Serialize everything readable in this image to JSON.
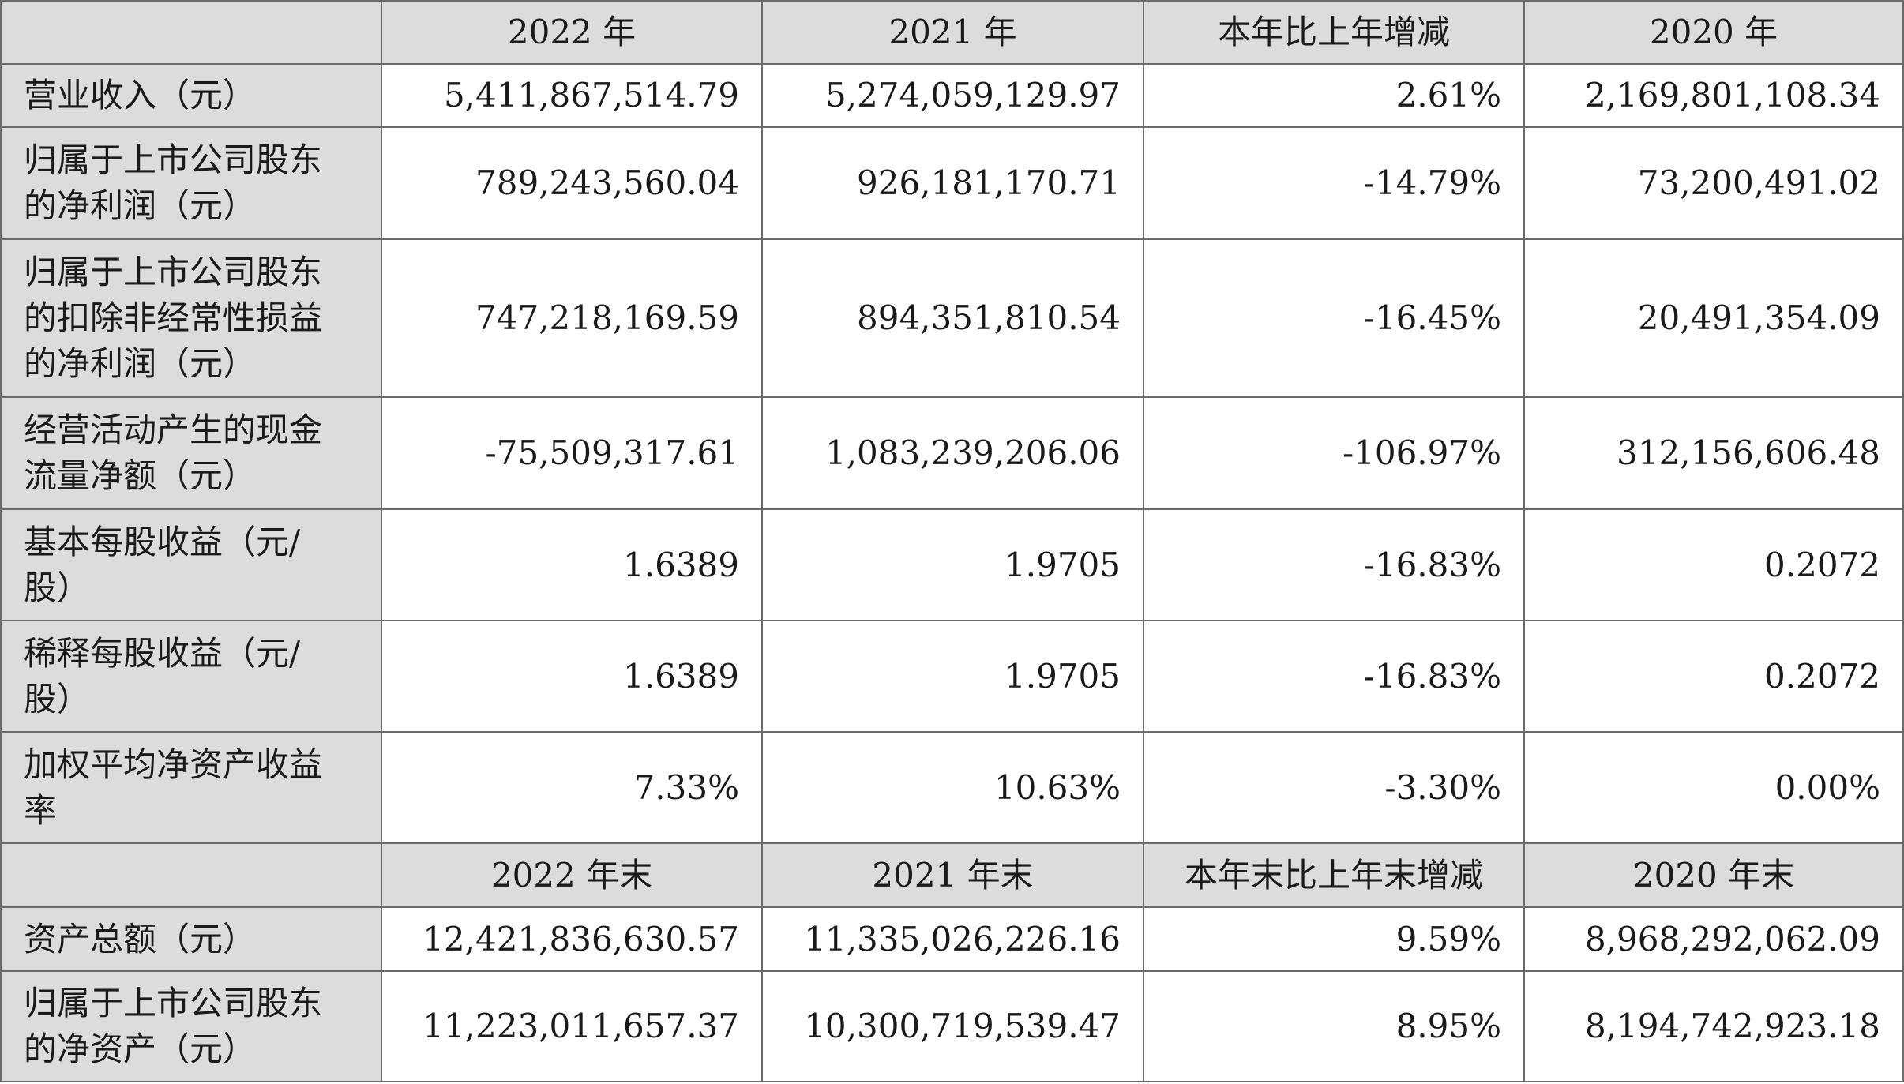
{
  "header1": {
    "c0": "",
    "c1": "2022 年",
    "c2": "2021 年",
    "c3": "本年比上年增减",
    "c4": "2020 年"
  },
  "rows1": [
    {
      "label_lines": [
        "营业收入（元）"
      ],
      "v2022": "5,411,867,514.79",
      "v2021": "5,274,059,129.97",
      "change": "2.61%",
      "v2020": "2,169,801,108.34"
    },
    {
      "label_lines": [
        "归属于上市公司股东",
        "的净利润（元）"
      ],
      "v2022": "789,243,560.04",
      "v2021": "926,181,170.71",
      "change": "-14.79%",
      "v2020": "73,200,491.02"
    },
    {
      "label_lines": [
        "归属于上市公司股东",
        "的扣除非经常性损益",
        "的净利润（元）"
      ],
      "v2022": "747,218,169.59",
      "v2021": "894,351,810.54",
      "change": "-16.45%",
      "v2020": "20,491,354.09"
    },
    {
      "label_lines": [
        "经营活动产生的现金",
        "流量净额（元）"
      ],
      "v2022": "-75,509,317.61",
      "v2021": "1,083,239,206.06",
      "change": "-106.97%",
      "v2020": "312,156,606.48"
    },
    {
      "label_lines": [
        "基本每股收益（元/",
        "股）"
      ],
      "v2022": "1.6389",
      "v2021": "1.9705",
      "change": "-16.83%",
      "v2020": "0.2072"
    },
    {
      "label_lines": [
        "稀释每股收益（元/",
        "股）"
      ],
      "v2022": "1.6389",
      "v2021": "1.9705",
      "change": "-16.83%",
      "v2020": "0.2072"
    },
    {
      "label_lines": [
        "加权平均净资产收益",
        "率"
      ],
      "v2022": "7.33%",
      "v2021": "10.63%",
      "change": "-3.30%",
      "v2020": "0.00%"
    }
  ],
  "header2": {
    "c0": "",
    "c1": "2022 年末",
    "c2": "2021 年末",
    "c3": "本年末比上年末增减",
    "c4": "2020 年末"
  },
  "rows2": [
    {
      "label_lines": [
        "资产总额（元）"
      ],
      "v2022": "12,421,836,630.57",
      "v2021": "11,335,026,226.16",
      "change": "9.59%",
      "v2020": "8,968,292,062.09"
    },
    {
      "label_lines": [
        "归属于上市公司股东",
        "的净资产（元）"
      ],
      "v2022": "11,223,011,657.37",
      "v2021": "10,300,719,539.47",
      "change": "8.95%",
      "v2020": "8,194,742,923.18"
    }
  ]
}
